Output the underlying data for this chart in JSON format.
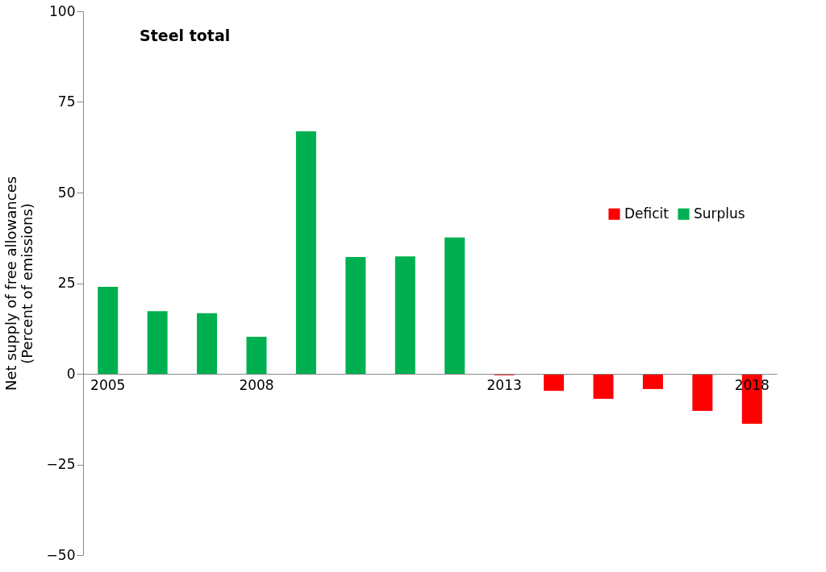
{
  "chart_data": {
    "type": "bar",
    "title": "Steel total",
    "ylabel": "Net supply of free allowances\n(Percent of emissions)",
    "categories": [
      "2005",
      null,
      null,
      "2008",
      null,
      null,
      null,
      null,
      "2013",
      null,
      null,
      null,
      null,
      "2018"
    ],
    "series": [
      {
        "name": "Deficit",
        "color": "#ff0000",
        "values": [
          null,
          null,
          null,
          null,
          null,
          null,
          null,
          null,
          -0.4,
          -4.7,
          -6.9,
          -4.2,
          -10.2,
          -13.8
        ]
      },
      {
        "name": "Surplus",
        "color": "#00b050",
        "values": [
          24.0,
          17.3,
          16.7,
          10.2,
          66.9,
          32.2,
          32.4,
          37.6,
          null,
          null,
          null,
          null,
          null,
          null
        ]
      }
    ],
    "ylim": [
      -50,
      100
    ],
    "yticks": [
      -50,
      -25,
      0,
      25,
      50,
      75,
      100
    ],
    "grid": false,
    "legend": "right"
  }
}
